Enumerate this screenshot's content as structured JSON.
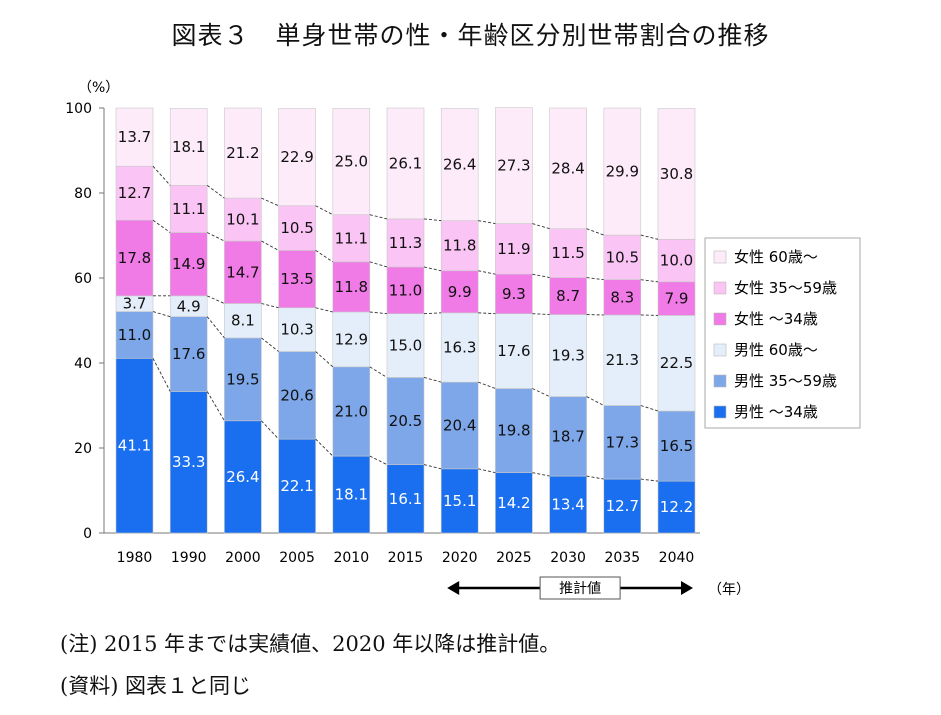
{
  "title": "図表３　単身世帯の性・年齢区分別世帯割合の推移",
  "notes": {
    "note1": "(注) 2015 年までは実績値、2020 年以降は推計値。",
    "note2": "(資料) 図表１と同じ"
  },
  "chart_data": {
    "type": "bar",
    "stacked": true,
    "ylabel": "（%）",
    "xunit": "（年）",
    "ylim": [
      0,
      100
    ],
    "yticks": [
      "0",
      "20",
      "40",
      "60",
      "80",
      "100"
    ],
    "categories": [
      "1980",
      "1990",
      "2000",
      "2005",
      "2010",
      "2015",
      "2020",
      "2025",
      "2030",
      "2035",
      "2040"
    ],
    "estimate_label": "推計値",
    "estimate_range": [
      "2020",
      "2040"
    ],
    "grid": false,
    "legend_position": "right",
    "series": [
      {
        "name": "男性 ～34歳",
        "color": "#1a6ff0",
        "values": [
          41.1,
          33.3,
          26.4,
          22.1,
          18.1,
          16.1,
          15.1,
          14.2,
          13.4,
          12.7,
          12.2
        ]
      },
      {
        "name": "男性 35～59歳",
        "color": "#7da7e8",
        "values": [
          11.0,
          17.6,
          19.5,
          20.6,
          21.0,
          20.5,
          20.4,
          19.8,
          18.7,
          17.3,
          16.5
        ]
      },
      {
        "name": "男性 60歳～",
        "color": "#e4eefa",
        "values": [
          3.7,
          4.9,
          8.1,
          10.3,
          12.9,
          15.0,
          16.3,
          17.6,
          19.3,
          21.3,
          22.5
        ]
      },
      {
        "name": "女性 ～34歳",
        "color": "#f07ae6",
        "values": [
          17.8,
          14.9,
          14.7,
          13.5,
          11.8,
          11.0,
          9.9,
          9.3,
          8.7,
          8.3,
          7.9
        ]
      },
      {
        "name": "女性 35～59歳",
        "color": "#fac4f4",
        "values": [
          12.7,
          11.1,
          10.1,
          10.5,
          11.1,
          11.3,
          11.8,
          11.9,
          11.5,
          10.5,
          10.0
        ]
      },
      {
        "name": "女性 60歳～",
        "color": "#fdebfa",
        "values": [
          13.7,
          18.1,
          21.2,
          22.9,
          25.0,
          26.1,
          26.4,
          27.3,
          28.4,
          29.9,
          30.8
        ]
      }
    ]
  }
}
